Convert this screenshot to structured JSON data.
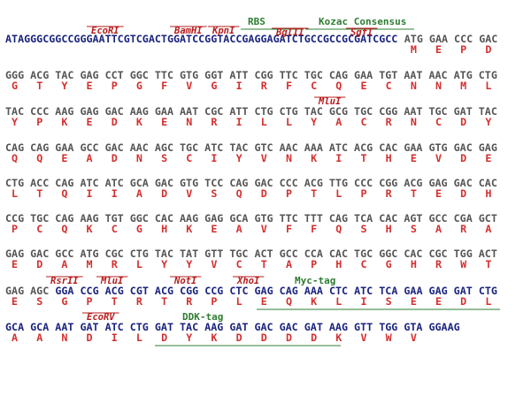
{
  "blocks": [
    {
      "annotations": [
        {
          "text": "RBS",
          "color": "#2e7d32"
        },
        {
          "text": "Kozac Consensus",
          "color": "#2e7d32"
        },
        {
          "text": "EcoRI",
          "color": "#b71c1c"
        },
        {
          "text": "BamHI",
          "color": "#b71c1c"
        },
        {
          "text": "KpnI",
          "color": "#b71c1c"
        },
        {
          "text": "BglII",
          "color": "#b71c1c"
        },
        {
          "text": "SgfI",
          "color": "#b71c1c"
        }
      ],
      "dna": [
        {
          "seq": "ATAGGGCGGCCGGGAATTCGTCGACTGGATCCGGTACCGAGGAGATCTGCCGCCGCGATCGCC",
          "color": "#1a237e"
        },
        {
          "seq": "ATG GAA CCC GAC",
          "color": "#555555"
        }
      ],
      "protein": [
        "M",
        "E",
        "P",
        "D"
      ]
    },
    {
      "annotations": [],
      "dna": [
        {
          "seq": "GGG ACG TAC GAG CCT GGC TTC GTG GGT ATT CGG TTC TGC CAG GAA TGT AAT AAC ATG CTG",
          "color": "#555555"
        }
      ],
      "protein": [
        "G",
        "T",
        "Y",
        "E",
        "P",
        "G",
        "F",
        "V",
        "G",
        "I",
        "R",
        "F",
        "C",
        "Q",
        "E",
        "C",
        "N",
        "N",
        "M",
        "L"
      ]
    },
    {
      "annotations": [
        {
          "text": "MluI",
          "color": "#b71c1c"
        }
      ],
      "dna": [
        {
          "seq": "TAC CCC AAG GAG GAC AAG GAA AAT CGC ATT CTG CTG TAC GCG TGC CGG AAT TGC GAT TAC",
          "color": "#555555"
        }
      ],
      "protein": [
        "Y",
        "P",
        "K",
        "E",
        "D",
        "K",
        "E",
        "N",
        "R",
        "I",
        "L",
        "L",
        "Y",
        "A",
        "C",
        "R",
        "N",
        "C",
        "D",
        "Y"
      ]
    },
    {
      "annotations": [],
      "dna": [
        {
          "seq": "CAG CAG GAA GCC GAC AAC AGC TGC ATC TAC GTC AAC AAA ATC ACG CAC GAA GTG GAC GAG",
          "color": "#555555"
        }
      ],
      "protein": [
        "Q",
        "Q",
        "E",
        "A",
        "D",
        "N",
        "S",
        "C",
        "I",
        "Y",
        "V",
        "N",
        "K",
        "I",
        "T",
        "H",
        "E",
        "V",
        "D",
        "E"
      ]
    },
    {
      "annotations": [],
      "dna": [
        {
          "seq": "CTG ACC CAG ATC ATC GCA GAC GTG TCC CAG GAC CCC ACG TTG CCC CGG ACG GAG GAC CAC",
          "color": "#555555"
        }
      ],
      "protein": [
        "L",
        "T",
        "Q",
        "I",
        "I",
        "A",
        "D",
        "V",
        "S",
        "Q",
        "D",
        "P",
        "T",
        "L",
        "P",
        "R",
        "T",
        "E",
        "D",
        "H"
      ]
    },
    {
      "annotations": [],
      "dna": [
        {
          "seq": "CCG TGC CAG AAG TGT GGC CAC AAG GAG GCA GTG TTC TTT CAG TCA CAC AGT GCC CGA GCT",
          "color": "#555555"
        }
      ],
      "protein": [
        "P",
        "C",
        "Q",
        "K",
        "C",
        "G",
        "H",
        "K",
        "E",
        "A",
        "V",
        "F",
        "F",
        "Q",
        "S",
        "H",
        "S",
        "A",
        "R",
        "A"
      ]
    },
    {
      "annotations": [],
      "dna": [
        {
          "seq": "GAG GAC GCC ATG CGC CTG TAC TAT GTT TGC ACT GCC CCA CAC TGC GGC CAC CGC TGG ACT",
          "color": "#555555"
        }
      ],
      "protein": [
        "E",
        "D",
        "A",
        "M",
        "R",
        "L",
        "Y",
        "Y",
        "V",
        "C",
        "T",
        "A",
        "P",
        "H",
        "C",
        "G",
        "H",
        "R",
        "W",
        "T"
      ]
    },
    {
      "annotations": [
        {
          "text": "RsrII",
          "color": "#b71c1c"
        },
        {
          "text": "MluI",
          "color": "#b71c1c"
        },
        {
          "text": "NotI",
          "color": "#b71c1c"
        },
        {
          "text": "XhoI",
          "color": "#b71c1c"
        },
        {
          "text": "Myc-tag",
          "color": "#2e7d32"
        }
      ],
      "dna": [
        {
          "seq": "GAG AGC",
          "color": "#555555"
        },
        {
          "seq": "GGA CCG ACG CGT ACG CGG CCG CTC GAG CAG AAA CTC ATC TCA GAA GAG GAT CTG",
          "color": "#1a237e"
        }
      ],
      "protein": [
        "E",
        "S",
        "G",
        "P",
        "T",
        "R",
        "T",
        "R",
        "P",
        "L",
        "E",
        "Q",
        "K",
        "L",
        "I",
        "S",
        "E",
        "E",
        "D",
        "L"
      ]
    },
    {
      "annotations": [
        {
          "text": "EcoRV",
          "color": "#b71c1c"
        },
        {
          "text": "DDK-tag",
          "color": "#2e7d32"
        }
      ],
      "dna": [
        {
          "seq": "GCA GCA AAT GAT ATC CTG GAT TAC AAG GAT GAC GAC GAT AAG GTT TGG GTA GGAAG",
          "color": "#1a237e"
        }
      ],
      "protein": [
        "A",
        "A",
        "N",
        "D",
        "I",
        "L",
        "D",
        "Y",
        "K",
        "D",
        "D",
        "D",
        "D",
        "K",
        "V",
        "W",
        "V"
      ]
    }
  ]
}
